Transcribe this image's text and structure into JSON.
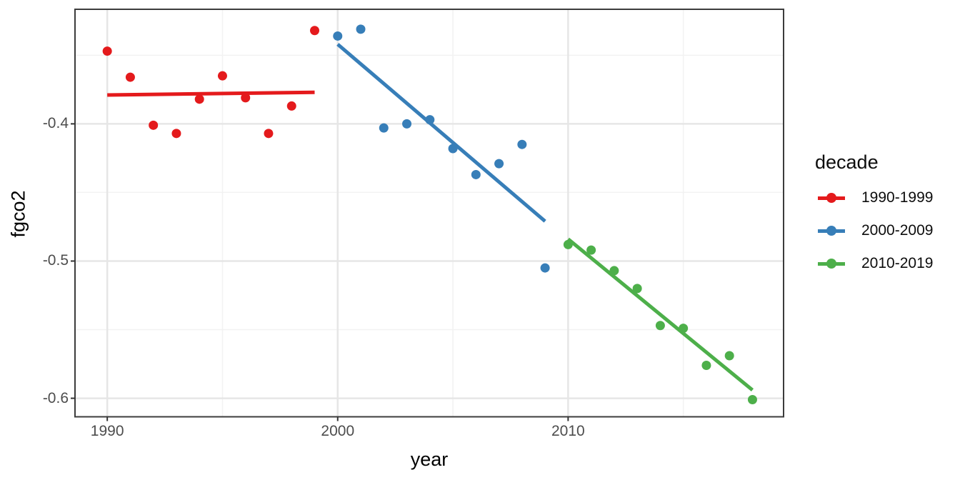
{
  "axes": {
    "x_title": "year",
    "y_title": "fgco2",
    "x_tick_labels": [
      "1990",
      "2000",
      "2010"
    ],
    "y_tick_labels": [
      "-0.4",
      "-0.5",
      "-0.6"
    ]
  },
  "legend": {
    "title": "decade",
    "items": [
      "1990-1999",
      "2000-2009",
      "2010-2019"
    ]
  },
  "colors": {
    "red": "#E41A1C",
    "blue": "#377EB8",
    "green": "#4DAF4A",
    "grid_major": "#E6E6E6",
    "grid_minor": "#F2F2F2",
    "panel_border": "#3C3C3C",
    "tick_mark": "#333333",
    "tick_label_text": "#4D4D4D",
    "title_text": "#000000",
    "background": "#FFFFFF"
  },
  "chart_data": {
    "type": "scatter",
    "title": "",
    "xlabel": "year",
    "ylabel": "fgco2",
    "x_domain": [
      1988.6,
      2019.35
    ],
    "y_domain": [
      -0.6135,
      -0.3165
    ],
    "x_ticks": [
      1990,
      2000,
      2010
    ],
    "x_minor_ticks": [
      1995,
      2005,
      2015
    ],
    "y_ticks": [
      -0.4,
      -0.5,
      -0.6
    ],
    "y_minor_ticks": [
      -0.35,
      -0.45,
      -0.55
    ],
    "grid": true,
    "legend_position": "right",
    "legend_title": "decade",
    "series": [
      {
        "name": "1990-1999",
        "color": "#E41A1C",
        "x": [
          1990,
          1991,
          1992,
          1993,
          1994,
          1995,
          1996,
          1997,
          1998,
          1999
        ],
        "y": [
          -0.347,
          -0.366,
          -0.401,
          -0.407,
          -0.382,
          -0.365,
          -0.381,
          -0.407,
          -0.387,
          -0.332
        ],
        "trend": {
          "x": [
            1990,
            1999
          ],
          "y": [
            -0.379,
            -0.377
          ]
        }
      },
      {
        "name": "2000-2009",
        "color": "#377EB8",
        "x": [
          2000,
          2001,
          2002,
          2003,
          2004,
          2005,
          2006,
          2007,
          2008,
          2009
        ],
        "y": [
          -0.336,
          -0.331,
          -0.403,
          -0.4,
          -0.397,
          -0.418,
          -0.437,
          -0.429,
          -0.415,
          -0.505
        ],
        "trend": {
          "x": [
            2000,
            2009
          ],
          "y": [
            -0.342,
            -0.471
          ]
        }
      },
      {
        "name": "2010-2019",
        "color": "#4DAF4A",
        "x": [
          2010,
          2011,
          2012,
          2013,
          2014,
          2015,
          2016,
          2017,
          2018
        ],
        "y": [
          -0.488,
          -0.492,
          -0.507,
          -0.52,
          -0.547,
          -0.549,
          -0.576,
          -0.569,
          -0.601
        ],
        "trend": {
          "x": [
            2010,
            2018
          ],
          "y": [
            -0.484,
            -0.594
          ]
        }
      }
    ]
  }
}
